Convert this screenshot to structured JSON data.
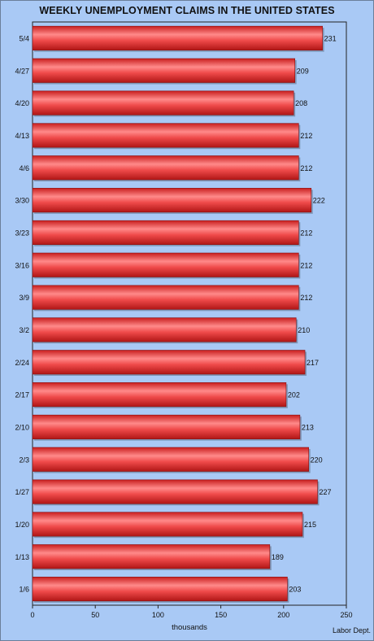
{
  "chart_data": {
    "type": "bar",
    "orientation": "horizontal",
    "title": "WEEKLY UNEMPLOYMENT CLAIMS IN THE UNITED STATES",
    "xlabel": "thousands",
    "ylabel": "",
    "source": "Labor Dept.",
    "categories": [
      "5/4",
      "4/27",
      "4/20",
      "4/13",
      "4/6",
      "3/30",
      "3/23",
      "3/16",
      "3/9",
      "3/2",
      "2/24",
      "2/17",
      "2/10",
      "2/3",
      "1/27",
      "1/20",
      "1/13",
      "1/6"
    ],
    "values": [
      231,
      209,
      208,
      212,
      212,
      222,
      212,
      212,
      212,
      210,
      217,
      202,
      213,
      220,
      227,
      215,
      189,
      203
    ],
    "xlim": [
      0,
      250
    ],
    "xticks": [
      0,
      50,
      100,
      150,
      200,
      250
    ],
    "grid": false,
    "legend": "none",
    "bar_color": "#e23b3b",
    "background_color": "#a9c9f5"
  }
}
